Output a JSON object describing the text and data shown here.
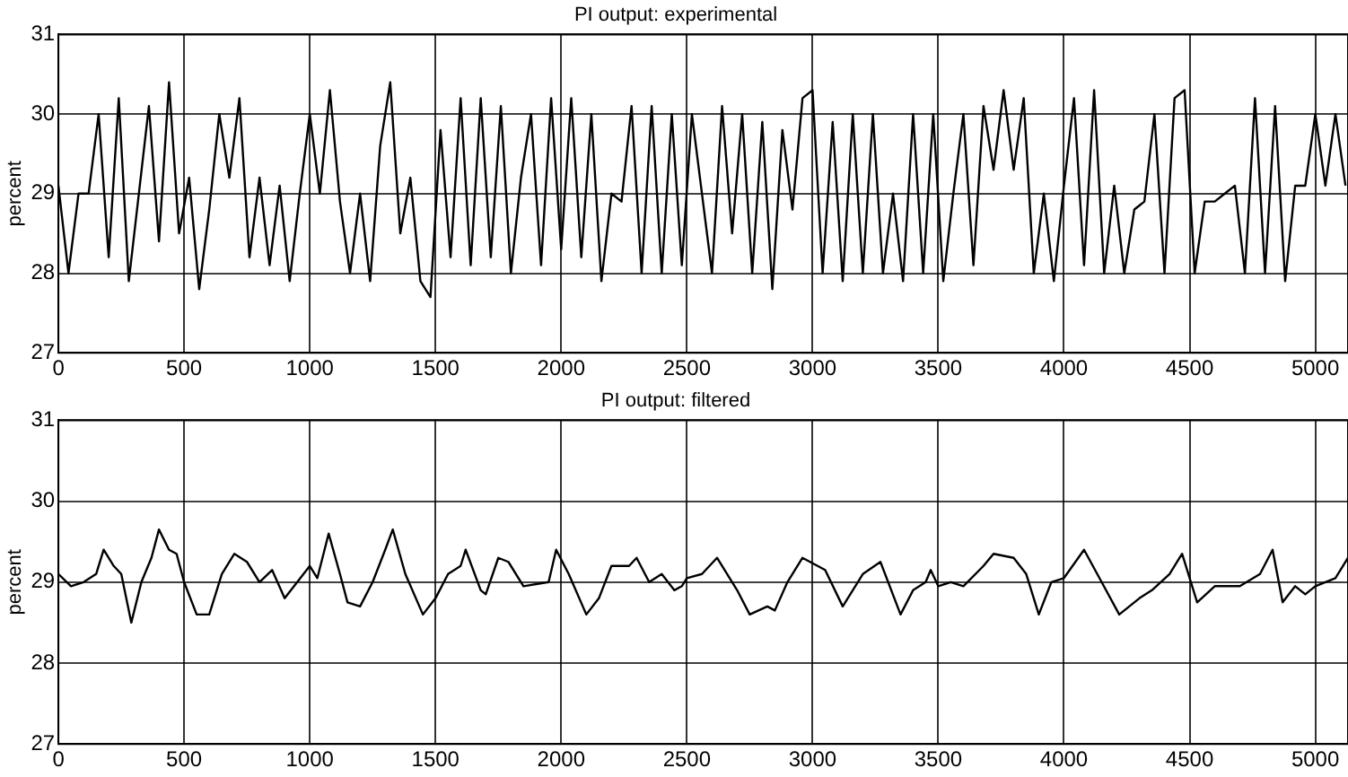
{
  "chart_data": [
    {
      "type": "line",
      "title": "PI output: experimental",
      "ylabel": "percent",
      "marker": "none",
      "grid": true,
      "xlim": [
        0,
        5130
      ],
      "xticks": [
        0,
        500,
        1000,
        1500,
        2000,
        2500,
        3000,
        3500,
        4000,
        4500,
        5000
      ],
      "ylim": [
        27,
        31
      ],
      "yticks": [
        27,
        28,
        29,
        30,
        31
      ],
      "x": [
        0,
        40,
        80,
        120,
        160,
        200,
        240,
        280,
        320,
        360,
        400,
        440,
        480,
        520,
        560,
        600,
        640,
        680,
        720,
        760,
        800,
        840,
        880,
        920,
        960,
        1000,
        1040,
        1080,
        1120,
        1160,
        1200,
        1240,
        1280,
        1320,
        1360,
        1400,
        1440,
        1480,
        1520,
        1560,
        1600,
        1640,
        1680,
        1720,
        1760,
        1800,
        1840,
        1880,
        1920,
        1960,
        2000,
        2040,
        2080,
        2120,
        2160,
        2200,
        2240,
        2280,
        2320,
        2360,
        2400,
        2440,
        2480,
        2520,
        2560,
        2600,
        2640,
        2680,
        2720,
        2760,
        2800,
        2840,
        2880,
        2920,
        2960,
        3000,
        3040,
        3080,
        3120,
        3160,
        3200,
        3240,
        3280,
        3320,
        3360,
        3400,
        3440,
        3480,
        3520,
        3560,
        3600,
        3640,
        3680,
        3720,
        3760,
        3800,
        3840,
        3880,
        3920,
        3960,
        4000,
        4040,
        4080,
        4120,
        4160,
        4200,
        4240,
        4280,
        4320,
        4360,
        4400,
        4440,
        4480,
        4520,
        4560,
        4600,
        4640,
        4680,
        4720,
        4760,
        4800,
        4840,
        4880,
        4920,
        4960,
        5000,
        5040,
        5080,
        5120
      ],
      "series": [
        {
          "color": "#000000",
          "values": [
            29.1,
            28.0,
            29.0,
            29.0,
            30.0,
            28.2,
            30.2,
            27.9,
            29.0,
            30.1,
            28.4,
            30.4,
            28.5,
            29.2,
            27.8,
            28.8,
            30.0,
            29.2,
            30.2,
            28.2,
            29.2,
            28.1,
            29.1,
            27.9,
            29.0,
            30.0,
            29.0,
            30.3,
            28.9,
            28.0,
            29.0,
            27.9,
            29.6,
            30.4,
            28.5,
            29.2,
            27.9,
            27.7,
            29.8,
            28.2,
            30.2,
            28.1,
            30.2,
            28.2,
            30.1,
            28.0,
            29.2,
            30.0,
            28.1,
            30.2,
            28.3,
            30.2,
            28.2,
            30.0,
            27.9,
            29.0,
            28.9,
            30.1,
            28.0,
            30.1,
            28.0,
            30.0,
            28.1,
            30.0,
            29.0,
            28.0,
            30.1,
            28.5,
            30.0,
            28.0,
            29.9,
            27.8,
            29.8,
            28.8,
            30.2,
            30.3,
            28.0,
            29.9,
            27.9,
            30.0,
            28.0,
            30.0,
            28.0,
            29.0,
            27.9,
            30.0,
            28.0,
            30.0,
            27.9,
            29.0,
            30.0,
            28.1,
            30.1,
            29.3,
            30.3,
            29.3,
            30.2,
            28.0,
            29.0,
            27.9,
            29.1,
            30.2,
            28.1,
            30.3,
            28.0,
            29.1,
            28.0,
            28.8,
            28.9,
            30.0,
            28.0,
            30.2,
            30.3,
            28.0,
            28.9,
            28.9,
            29.0,
            29.1,
            28.0,
            30.2,
            28.0,
            30.1,
            27.9,
            29.1,
            29.1,
            30.0,
            29.1,
            30.0,
            29.1
          ]
        }
      ]
    },
    {
      "type": "line",
      "title": "PI output: filtered",
      "ylabel": "percent",
      "marker": "none",
      "grid": true,
      "xlim": [
        0,
        5130
      ],
      "xticks": [
        0,
        500,
        1000,
        1500,
        2000,
        2500,
        3000,
        3500,
        4000,
        4500,
        5000
      ],
      "ylim": [
        27,
        31
      ],
      "yticks": [
        27,
        28,
        29,
        30,
        31
      ],
      "x": [
        0,
        50,
        100,
        150,
        180,
        220,
        250,
        290,
        330,
        370,
        400,
        440,
        470,
        500,
        550,
        600,
        650,
        700,
        750,
        800,
        850,
        900,
        950,
        1000,
        1030,
        1075,
        1120,
        1150,
        1200,
        1250,
        1300,
        1330,
        1380,
        1450,
        1500,
        1550,
        1600,
        1620,
        1680,
        1700,
        1750,
        1790,
        1850,
        1950,
        1980,
        2030,
        2100,
        2150,
        2200,
        2270,
        2300,
        2350,
        2400,
        2450,
        2480,
        2500,
        2560,
        2620,
        2700,
        2750,
        2820,
        2850,
        2900,
        2960,
        3050,
        3120,
        3200,
        3270,
        3350,
        3400,
        3450,
        3470,
        3500,
        3550,
        3600,
        3680,
        3720,
        3800,
        3850,
        3900,
        3950,
        4000,
        4080,
        4150,
        4220,
        4300,
        4350,
        4420,
        4470,
        4530,
        4600,
        4700,
        4780,
        4830,
        4870,
        4920,
        4960,
        5000,
        5080,
        5130
      ],
      "series": [
        {
          "color": "#000000",
          "values": [
            29.1,
            28.95,
            29.0,
            29.1,
            29.4,
            29.2,
            29.1,
            28.5,
            29.0,
            29.3,
            29.65,
            29.4,
            29.35,
            29.0,
            28.6,
            28.6,
            29.1,
            29.35,
            29.25,
            29.0,
            29.15,
            28.8,
            29.0,
            29.2,
            29.05,
            29.6,
            29.1,
            28.75,
            28.7,
            29.0,
            29.4,
            29.65,
            29.1,
            28.6,
            28.8,
            29.1,
            29.2,
            29.4,
            28.9,
            28.85,
            29.3,
            29.25,
            28.95,
            29.0,
            29.4,
            29.1,
            28.6,
            28.8,
            29.2,
            29.2,
            29.3,
            29.0,
            29.1,
            28.9,
            28.95,
            29.05,
            29.1,
            29.3,
            28.9,
            28.6,
            28.7,
            28.65,
            29.0,
            29.3,
            29.15,
            28.7,
            29.1,
            29.25,
            28.6,
            28.9,
            29.0,
            29.15,
            28.95,
            29.0,
            28.95,
            29.2,
            29.35,
            29.3,
            29.1,
            28.6,
            29.0,
            29.05,
            29.4,
            29.0,
            28.6,
            28.8,
            28.9,
            29.1,
            29.35,
            28.75,
            28.95,
            28.95,
            29.1,
            29.4,
            28.75,
            28.95,
            28.85,
            28.95,
            29.05,
            29.3
          ]
        }
      ]
    }
  ]
}
